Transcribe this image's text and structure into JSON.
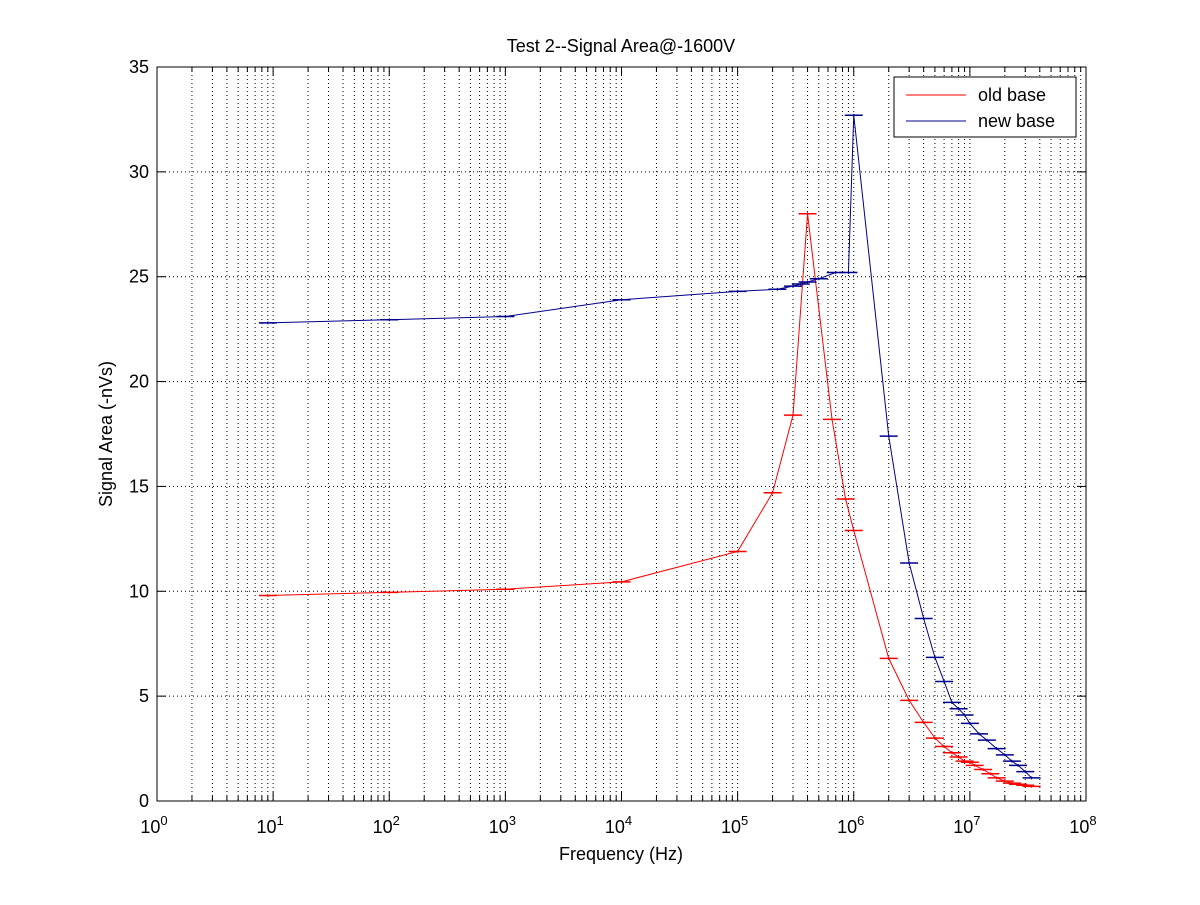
{
  "chart_data": {
    "type": "line",
    "title": "Test 2--Signal Area@-1600V",
    "xlabel": "Frequency (Hz)",
    "ylabel": "Signal Area (-nVs)",
    "xscale": "log",
    "xlim": [
      1,
      100000000
    ],
    "ylim": [
      0,
      35
    ],
    "x_tick_labels": [
      {
        "base": "10",
        "exp": "0"
      },
      {
        "base": "10",
        "exp": "1"
      },
      {
        "base": "10",
        "exp": "2"
      },
      {
        "base": "10",
        "exp": "3"
      },
      {
        "base": "10",
        "exp": "4"
      },
      {
        "base": "10",
        "exp": "5"
      },
      {
        "base": "10",
        "exp": "6"
      },
      {
        "base": "10",
        "exp": "7"
      },
      {
        "base": "10",
        "exp": "8"
      }
    ],
    "y_ticks": [
      0,
      5,
      10,
      15,
      20,
      25,
      30,
      35
    ],
    "grid": true,
    "grid_style": "dotted",
    "error_bars": true,
    "legend": {
      "placement": "top-right"
    },
    "series": [
      {
        "name": "old base",
        "color": "#ff0000",
        "x": [
          9,
          100,
          1000,
          10000,
          100000,
          200000,
          300000,
          400000,
          650000,
          850000,
          1000000,
          2000000,
          3000000,
          4000000,
          5000000,
          6000000,
          7000000,
          8000000,
          9000000,
          10000000,
          11000000,
          13000000,
          15000000,
          17000000,
          20000000,
          23000000,
          26000000,
          30000000,
          34000000
        ],
        "y": [
          9.8,
          9.95,
          10.1,
          10.45,
          11.9,
          14.7,
          18.4,
          28.0,
          18.2,
          14.4,
          12.9,
          6.8,
          4.8,
          3.75,
          3.0,
          2.6,
          2.3,
          2.1,
          1.9,
          1.85,
          1.7,
          1.5,
          1.3,
          1.1,
          0.95,
          0.85,
          0.8,
          0.75,
          0.7
        ]
      },
      {
        "name": "new base",
        "color": "#00008b",
        "x": [
          9,
          100,
          1000,
          10000,
          100000,
          220000,
          300000,
          350000,
          400000,
          500000,
          700000,
          900000,
          1000000,
          2000000,
          3000000,
          4000000,
          5000000,
          6000000,
          7000000,
          8000000,
          9000000,
          10000000,
          12000000,
          14000000,
          17000000,
          20000000,
          23000000,
          26000000,
          30000000,
          34000000
        ],
        "y": [
          22.8,
          22.95,
          23.1,
          23.9,
          24.3,
          24.4,
          24.55,
          24.65,
          24.75,
          24.9,
          25.2,
          25.2,
          32.7,
          17.4,
          11.35,
          8.7,
          6.85,
          5.7,
          4.7,
          4.4,
          4.1,
          3.7,
          3.2,
          2.9,
          2.5,
          2.2,
          1.9,
          1.7,
          1.4,
          1.1
        ]
      }
    ]
  }
}
